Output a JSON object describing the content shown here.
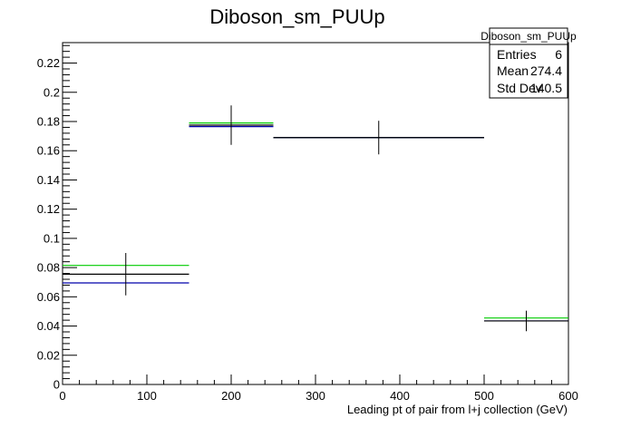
{
  "chart_data": {
    "type": "scatter",
    "title": "Diboson_sm_PUUp",
    "xlabel": "Leading pt of pair from l+j collection (GeV)",
    "ylabel": "",
    "xlim": [
      0,
      600
    ],
    "ylim": [
      0,
      0.234
    ],
    "x_ticks": [
      0,
      100,
      200,
      300,
      400,
      500,
      600
    ],
    "y_ticks": [
      0,
      0.02,
      0.04,
      0.06,
      0.08,
      0.1,
      0.12,
      0.14,
      0.16,
      0.18,
      0.2,
      0.22
    ],
    "grid": false,
    "series": [
      {
        "color": "#000000",
        "bins": [
          {
            "x_low": 0,
            "x_high": 150,
            "y": 0.0755,
            "err": 0.0145
          },
          {
            "x_low": 150,
            "x_high": 250,
            "y": 0.1775,
            "err": 0.0135
          },
          {
            "x_low": 250,
            "x_high": 500,
            "y": 0.169,
            "err": 0.0115
          },
          {
            "x_low": 500,
            "x_high": 600,
            "y": 0.0435,
            "err": 0.007
          }
        ]
      },
      {
        "color": "#00cc00",
        "bins": [
          {
            "x_low": 0,
            "x_high": 150,
            "y": 0.0815
          },
          {
            "x_low": 150,
            "x_high": 250,
            "y": 0.179
          },
          {
            "x_low": 250,
            "x_high": 500,
            "y": 0.169
          },
          {
            "x_low": 500,
            "x_high": 600,
            "y": 0.0455
          }
        ]
      },
      {
        "color": "#0000aa",
        "bins": [
          {
            "x_low": 0,
            "x_high": 150,
            "y": 0.0695
          },
          {
            "x_low": 150,
            "x_high": 250,
            "y": 0.1765
          },
          {
            "x_low": 250,
            "x_high": 500,
            "y": 0.169
          },
          {
            "x_low": 500,
            "x_high": 600,
            "y": 0.0435
          }
        ]
      }
    ],
    "legend_position": "top-right"
  },
  "stats_box": {
    "title": "Diboson_sm_PUUp",
    "rows": [
      {
        "label": "Entries",
        "value": "6"
      },
      {
        "label": "Mean",
        "value": "274.4"
      },
      {
        "label": "Std Dev",
        "value": "140.5"
      }
    ]
  }
}
